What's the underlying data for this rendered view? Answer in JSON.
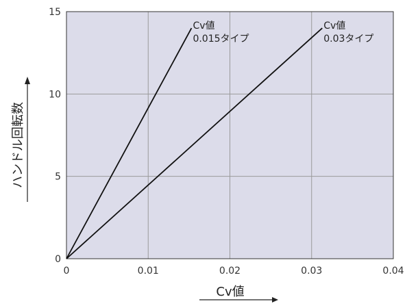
{
  "chart_data": {
    "type": "line",
    "title": "",
    "xlabel": "Cv値",
    "ylabel": "ハンドル回転数",
    "xlim": [
      0,
      0.04
    ],
    "ylim": [
      0,
      15
    ],
    "x_ticks": [
      0,
      0.01,
      0.02,
      0.03,
      0.04
    ],
    "x_tick_labels": [
      "0",
      "0.01",
      "0.02",
      "0.03",
      "0.04"
    ],
    "y_ticks": [
      0,
      5,
      10,
      15
    ],
    "y_tick_labels": [
      "0",
      "5",
      "10",
      "15"
    ],
    "grid": true,
    "series": [
      {
        "x": [
          0,
          0.0153
        ],
        "y": [
          0,
          14
        ]
      },
      {
        "x": [
          0,
          0.0313
        ],
        "y": [
          0,
          14
        ]
      }
    ],
    "annotations": [
      {
        "lines": [
          "Cv値",
          "0.015タイプ"
        ],
        "x": 0.0153,
        "y": 14
      },
      {
        "lines": [
          "Cv値",
          "0.03タイプ"
        ],
        "x": 0.0313,
        "y": 14
      }
    ],
    "colors": {
      "plot_background": "#dcdcea",
      "grid": "#9a9a9a",
      "line": "#111111",
      "axis": "#333333"
    }
  }
}
